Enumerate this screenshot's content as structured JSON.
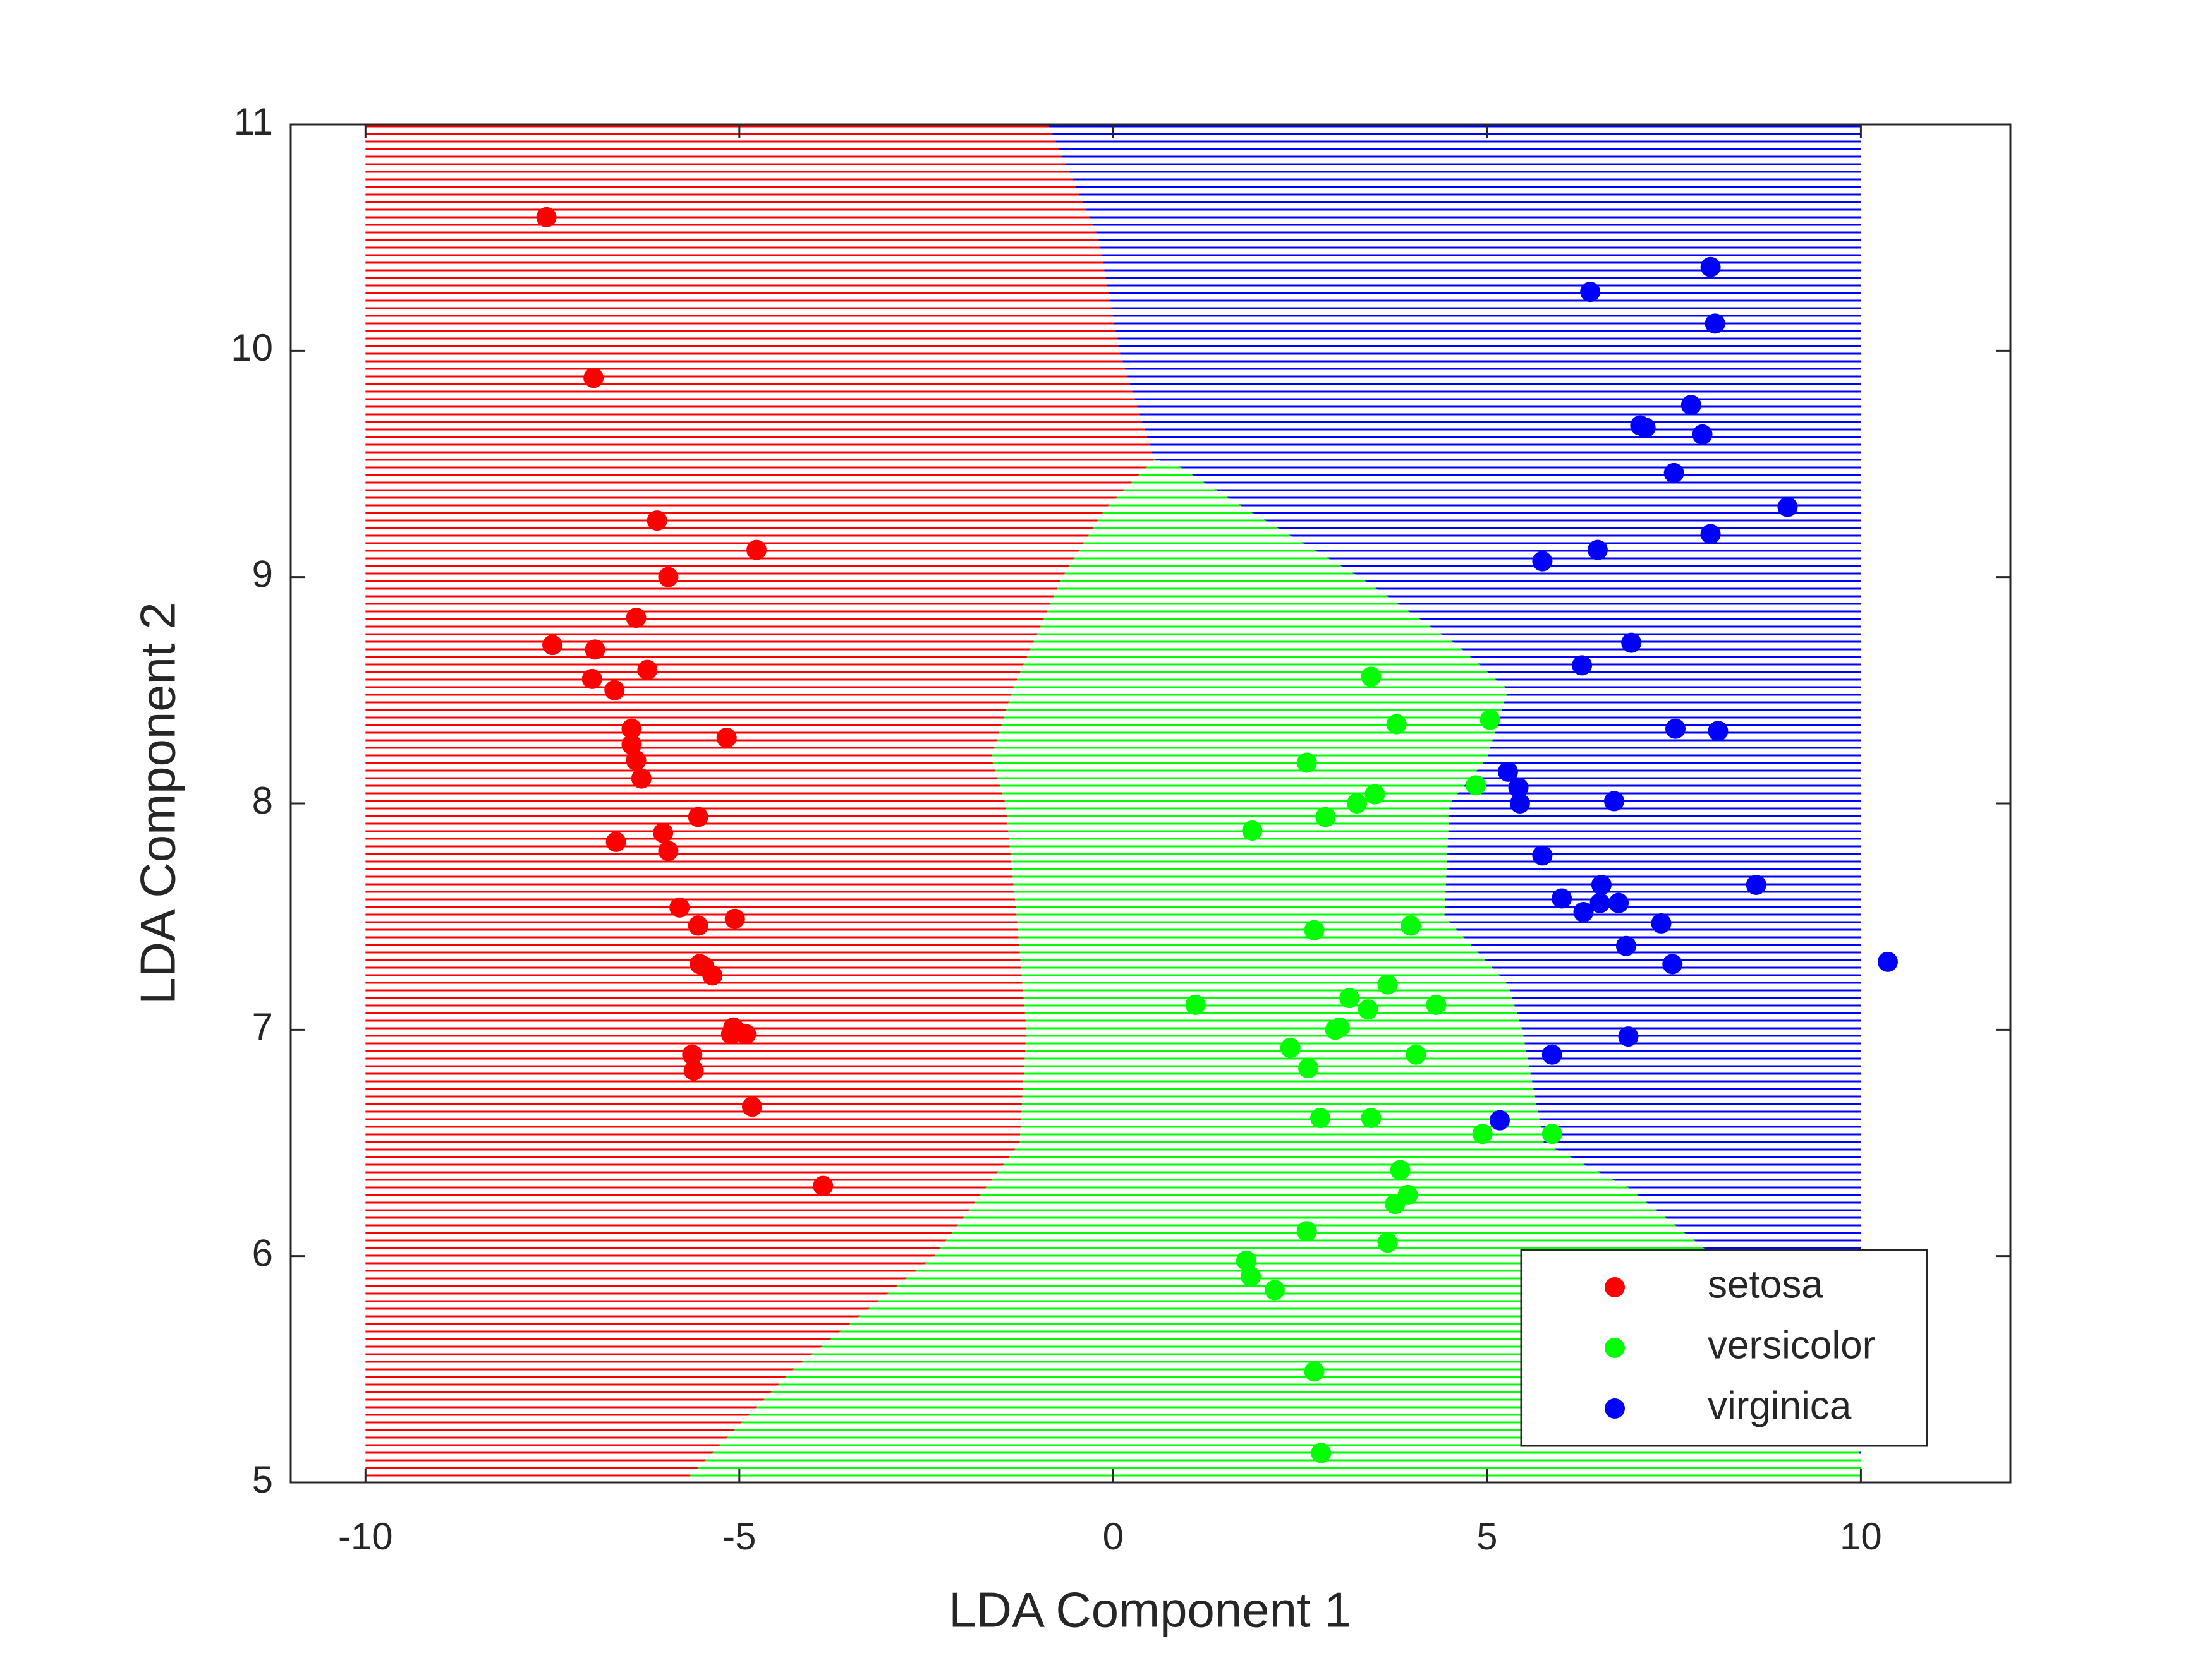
{
  "chart_data": {
    "type": "scatter",
    "x_label": "LDA Component 1",
    "y_label": "LDA Component 2",
    "xlim": [
      -11,
      12
    ],
    "ylim": [
      5,
      11
    ],
    "xticks": [
      -10,
      -5,
      0,
      5,
      10
    ],
    "yticks": [
      5,
      6,
      7,
      8,
      9,
      10,
      11
    ],
    "legend_position": "lower right",
    "regions": [
      {
        "color": "#ff0000",
        "x": [
          -10,
          -10,
          -0.87,
          -0.2,
          0.08,
          0.55,
          -0.11,
          -0.68,
          -1.35,
          -1.63,
          -1.44,
          -1.29,
          -1.16,
          -1.25,
          -2.39,
          -4.28,
          -5.74
        ],
        "y": [
          5,
          11,
          11,
          10.5,
          10,
          9.52,
          9.3,
          9,
          8.5,
          8.2,
          8,
          7.5,
          7,
          6.5,
          6,
          5.5,
          5
        ]
      },
      {
        "color": "#00ff00",
        "x": [
          -5.74,
          -4.28,
          -2.39,
          -1.25,
          -1.16,
          -1.29,
          -1.44,
          -1.63,
          -1.35,
          -0.68,
          -0.11,
          0.55,
          0.83,
          1.78,
          3.3,
          4.6,
          5.28,
          5.0,
          4.5,
          4.43,
          5.28,
          5.47,
          5.76,
          6.9,
          8.03,
          8.8,
          9.73,
          10,
          10
        ],
        "y": [
          5,
          5.5,
          6,
          6.5,
          7,
          7.5,
          8,
          8.2,
          8.5,
          9,
          9.3,
          9.52,
          9.5,
          9.3,
          9,
          8.7,
          8.5,
          8.2,
          8,
          7.5,
          7.2,
          7,
          6.5,
          6.3,
          6,
          5.8,
          5.5,
          5.1,
          5
        ]
      },
      {
        "color": "#0000ff",
        "x": [
          -0.87,
          10,
          10,
          9.73,
          8.8,
          8.03,
          6.9,
          5.76,
          5.47,
          5.28,
          4.43,
          4.5,
          5.0,
          5.28,
          4.6,
          3.3,
          1.78,
          0.83,
          0.55,
          0.08,
          -0.2
        ],
        "y": [
          11,
          11,
          5.1,
          5.5,
          5.8,
          6,
          6.3,
          6.5,
          7,
          7.2,
          7.5,
          8,
          8.2,
          8.5,
          8.7,
          9,
          9.3,
          9.5,
          9.52,
          10,
          10.5
        ]
      }
    ],
    "series": [
      {
        "name": "setosa",
        "color": "#ff0000",
        "x": [
          -7.58,
          -6.95,
          -6.1,
          -4.77,
          -5.95,
          -6.38,
          -7.5,
          -6.93,
          -6.23,
          -6.97,
          -6.67,
          -6.44,
          -5.17,
          -6.44,
          -6.38,
          -6.31,
          -5.55,
          -6.02,
          -5.95,
          -6.65,
          -5.8,
          -5.06,
          -5.55,
          -5.53,
          -5.47,
          -5.36,
          -5.08,
          -5.11,
          -4.91,
          -5.63,
          -5.61,
          -4.83,
          -3.88
        ],
        "values": [
          10.59,
          9.88,
          9.25,
          9.12,
          9.0,
          8.82,
          8.7,
          8.68,
          8.59,
          8.55,
          8.5,
          8.33,
          8.29,
          8.26,
          8.19,
          8.11,
          7.94,
          7.87,
          7.79,
          7.83,
          7.54,
          7.49,
          7.46,
          7.29,
          7.28,
          7.24,
          7.01,
          6.98,
          6.98,
          6.89,
          6.82,
          6.66,
          6.31
        ]
      },
      {
        "name": "versicolor",
        "color": "#00ff00",
        "x": [
          3.45,
          5.04,
          3.79,
          2.59,
          4.85,
          3.5,
          3.26,
          2.84,
          1.86,
          2.69,
          3.98,
          3.67,
          1.1,
          3.16,
          3.41,
          4.32,
          3.03,
          2.97,
          2.37,
          4.05,
          2.61,
          2.77,
          3.45,
          4.94,
          5.87,
          3.84,
          3.94,
          3.77,
          2.59,
          3.67,
          1.78,
          1.84,
          2.16,
          2.69,
          2.78
        ],
        "values": [
          8.56,
          8.37,
          8.35,
          8.18,
          8.08,
          8.04,
          8.0,
          7.94,
          7.88,
          7.44,
          7.46,
          7.2,
          7.11,
          7.14,
          7.09,
          7.11,
          7.01,
          7.0,
          6.92,
          6.89,
          6.83,
          6.61,
          6.61,
          6.54,
          6.54,
          6.38,
          6.27,
          6.23,
          6.11,
          6.06,
          5.98,
          5.91,
          5.85,
          5.49,
          5.13
        ]
      },
      {
        "name": "virginica",
        "color": "#0000ff",
        "x": [
          7.99,
          6.38,
          8.05,
          7.73,
          7.05,
          7.12,
          7.88,
          7.5,
          9.02,
          7.99,
          6.48,
          5.74,
          6.93,
          6.27,
          7.52,
          8.09,
          5.28,
          5.42,
          5.44,
          6.7,
          5.74,
          8.6,
          6.53,
          6.0,
          6.51,
          6.76,
          6.29,
          7.33,
          6.86,
          7.48,
          10.36,
          6.89,
          5.87,
          5.17
        ],
        "values": [
          10.37,
          10.26,
          10.12,
          9.76,
          9.67,
          9.66,
          9.63,
          9.46,
          9.31,
          9.19,
          9.12,
          9.07,
          8.71,
          8.61,
          8.33,
          8.32,
          8.14,
          8.07,
          8.0,
          8.01,
          7.77,
          7.64,
          7.64,
          7.58,
          7.56,
          7.56,
          7.52,
          7.47,
          7.37,
          7.29,
          7.3,
          6.97,
          6.89,
          6.6
        ]
      }
    ]
  }
}
